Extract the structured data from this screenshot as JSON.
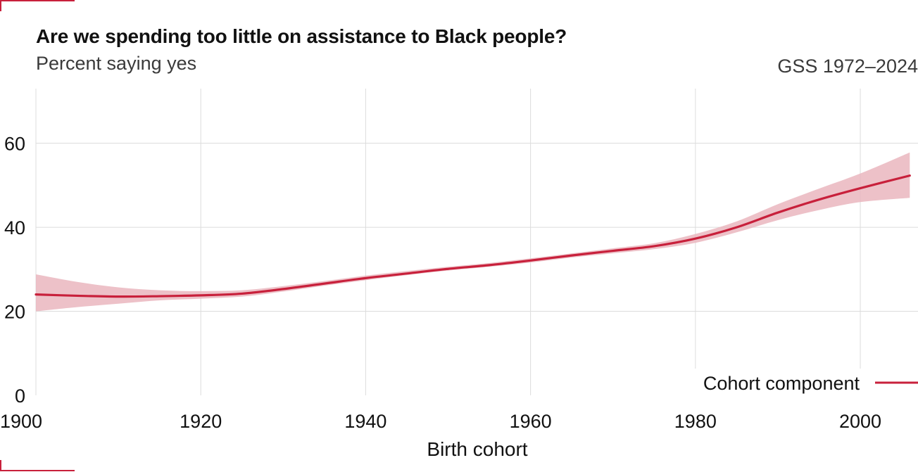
{
  "chart_data": {
    "type": "line",
    "title": "Are we spending too little on assistance to Black people?",
    "subtitle": "Percent saying yes",
    "source_note": "GSS 1972–2024",
    "xlabel": "Birth cohort",
    "ylabel": "",
    "xlim": [
      1900,
      2007
    ],
    "ylim": [
      0,
      73
    ],
    "x_ticks": [
      1900,
      1920,
      1940,
      1960,
      1980,
      2000
    ],
    "y_ticks": [
      0,
      20,
      40,
      60
    ],
    "grid": true,
    "legend_position": "bottom-right",
    "series": [
      {
        "name": "Cohort component",
        "color": "#c8203b",
        "band_color": "#eab6be",
        "x": [
          1900,
          1905,
          1910,
          1915,
          1920,
          1925,
          1930,
          1935,
          1940,
          1945,
          1950,
          1955,
          1960,
          1965,
          1970,
          1975,
          1980,
          1985,
          1990,
          1995,
          2000,
          2006
        ],
        "y": [
          24.0,
          23.7,
          23.5,
          23.6,
          23.8,
          24.2,
          25.3,
          26.6,
          27.9,
          29.0,
          30.1,
          31.0,
          32.1,
          33.3,
          34.4,
          35.5,
          37.3,
          40.0,
          43.5,
          46.6,
          49.3,
          52.3
        ],
        "lower": [
          20.0,
          21.0,
          21.8,
          22.6,
          23.0,
          23.5,
          24.7,
          26.1,
          27.4,
          28.6,
          29.7,
          30.6,
          31.6,
          32.8,
          33.8,
          34.8,
          36.3,
          38.8,
          41.7,
          44.1,
          46.0,
          47.0
        ],
        "upper": [
          28.8,
          27.0,
          25.7,
          25.0,
          24.8,
          25.0,
          26.0,
          27.2,
          28.5,
          29.6,
          30.6,
          31.5,
          32.6,
          33.8,
          35.0,
          36.2,
          38.4,
          41.4,
          45.5,
          49.2,
          52.8,
          57.8
        ]
      }
    ]
  }
}
